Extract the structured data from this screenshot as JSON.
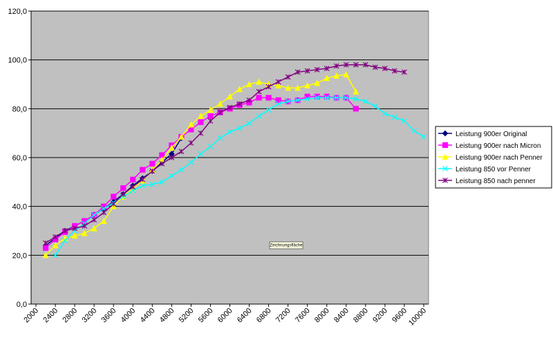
{
  "chart_data": {
    "type": "line",
    "annotation": "Zeichnungsfläche",
    "xlim": [
      1900,
      10100
    ],
    "xticks": [
      2000,
      2400,
      2800,
      3200,
      3600,
      4000,
      4400,
      4800,
      5200,
      5600,
      6000,
      6400,
      6800,
      7200,
      7600,
      8000,
      8400,
      8800,
      9200,
      9600,
      10000
    ],
    "ylim": [
      0,
      120
    ],
    "yticks": [
      {
        "value": 0,
        "label": "0,0"
      },
      {
        "value": 20,
        "label": "20,0"
      },
      {
        "value": 40,
        "label": "40,0"
      },
      {
        "value": 60,
        "label": "60,0"
      },
      {
        "value": 80,
        "label": "80,0"
      },
      {
        "value": 100,
        "label": "100,0"
      },
      {
        "value": 120,
        "label": "120,0"
      }
    ],
    "grid": true,
    "legend": "right",
    "series": [
      {
        "name": "Leistung 900er Original",
        "color": "#000080",
        "marker": "diamond",
        "x": [
          2200,
          2400,
          2600,
          2800,
          3000,
          3200,
          3400,
          3600,
          3800,
          4000,
          4200,
          4400,
          4600,
          4800,
          5000
        ],
        "values": [
          24,
          27,
          30,
          32,
          34,
          36.5,
          39,
          42,
          45,
          48.5,
          51.5,
          54.5,
          58,
          61.5,
          68
        ]
      },
      {
        "name": "Leistung 900er nach Micron",
        "color": "#ff00ff",
        "marker": "square",
        "x": [
          2200,
          2400,
          2600,
          2800,
          3000,
          3200,
          3400,
          3600,
          3800,
          4000,
          4200,
          4400,
          4600,
          4800,
          5000,
          5200,
          5400,
          5600,
          5800,
          6000,
          6200,
          6400,
          6600,
          6800,
          7000,
          7200,
          7400,
          7600,
          7800,
          8000,
          8200,
          8400,
          8600
        ],
        "values": [
          23,
          26.5,
          29.5,
          32,
          34,
          36.5,
          40,
          44,
          47.5,
          51,
          55,
          57.5,
          61,
          65,
          68.5,
          71.5,
          74.5,
          77,
          78.5,
          80,
          81.5,
          82.5,
          84.5,
          84.5,
          83.5,
          83,
          83.5,
          85,
          85,
          85,
          84.5,
          84.5,
          80
        ]
      },
      {
        "name": "Leistung 900er nach Penner",
        "color": "#ffff00",
        "marker": "triangle",
        "x": [
          2200,
          2400,
          2600,
          2800,
          3000,
          3200,
          3400,
          3600,
          3800,
          4000,
          4200,
          4400,
          4600,
          4800,
          5000,
          5200,
          5400,
          5600,
          5800,
          6000,
          6200,
          6400,
          6600,
          6800,
          7000,
          7200,
          7400,
          7600,
          7800,
          8000,
          8200,
          8400,
          8600
        ],
        "values": [
          20,
          24,
          27,
          28,
          29,
          31,
          34,
          40,
          44,
          47.5,
          50.5,
          55,
          59,
          64,
          68.5,
          73.5,
          77,
          79.5,
          82,
          85,
          88,
          90,
          91,
          90,
          89.5,
          88.5,
          88.5,
          89.5,
          90.5,
          92.5,
          93.5,
          94,
          87
        ]
      },
      {
        "name": "Leistung 850 vor Penner",
        "color": "#00ffff",
        "marker": "x",
        "x": [
          2400,
          2600,
          2800,
          3000,
          3200,
          3400,
          3600,
          3800,
          4000,
          4200,
          4400,
          4600,
          4800,
          5000,
          5200,
          5400,
          5600,
          5800,
          6000,
          6200,
          6400,
          6600,
          6800,
          7000,
          7200,
          7400,
          7600,
          7800,
          8000,
          8200,
          8400,
          8600,
          8800,
          9000,
          9200,
          9400,
          9600,
          9800,
          10000
        ],
        "values": [
          20,
          26,
          30,
          33,
          36.5,
          39,
          41.5,
          44,
          46.5,
          48.5,
          49,
          50,
          52.5,
          55,
          58,
          61.5,
          64.5,
          68,
          70.5,
          72,
          74,
          77,
          79.5,
          82,
          83,
          83.5,
          84,
          84.5,
          84.5,
          84.5,
          84.5,
          84,
          83,
          81,
          78,
          76.5,
          75,
          71,
          68.5
        ]
      },
      {
        "name": "Leistung 850 nach penner",
        "color": "#800080",
        "marker": "star",
        "x": [
          2200,
          2400,
          2600,
          2800,
          3000,
          3200,
          3400,
          3600,
          3800,
          4000,
          4200,
          4400,
          4600,
          4800,
          5000,
          5200,
          5400,
          5600,
          5800,
          6000,
          6200,
          6400,
          6600,
          6800,
          7000,
          7200,
          7400,
          7600,
          7800,
          8000,
          8200,
          8400,
          8600,
          8800,
          9000,
          9200,
          9400,
          9600
        ],
        "values": [
          25,
          27.5,
          30,
          31,
          32,
          34.5,
          37.5,
          41,
          45,
          48,
          51,
          54.5,
          57.5,
          60,
          62.5,
          66,
          70,
          75,
          78.5,
          80.5,
          82,
          83.5,
          87,
          89,
          91,
          93,
          95,
          95.5,
          96,
          96.5,
          97.5,
          98,
          98,
          98,
          97,
          96.5,
          95.5,
          95
        ]
      }
    ]
  }
}
